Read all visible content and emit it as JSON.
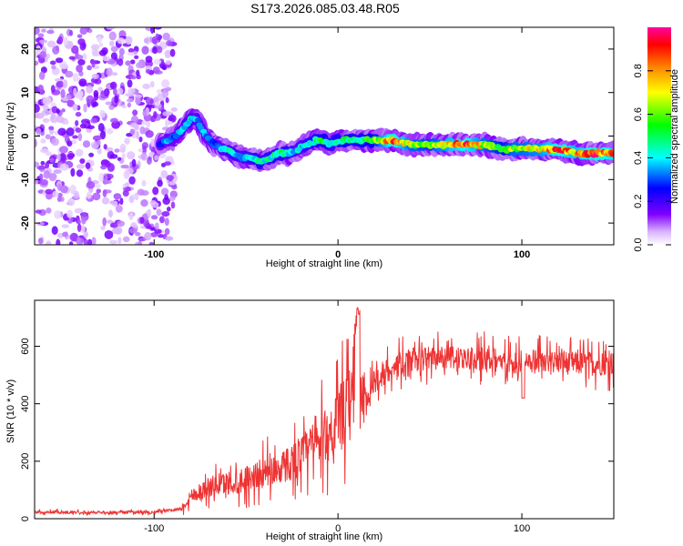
{
  "title": "S173.2026.085.03.48.R05",
  "charts": [
    {
      "type": "heatmap",
      "name": "spectrogram",
      "xlabel": "Height of straight line (km)",
      "ylabel": "Frequency (Hz)",
      "xlim": [
        -165,
        150
      ],
      "ylim": [
        -25,
        25
      ],
      "xticks": [
        -100,
        0,
        100
      ],
      "yticks": [
        -20,
        -10,
        0,
        10,
        20
      ],
      "colorbar": {
        "label": "Normalized spectral amplitude",
        "range": [
          0,
          1
        ],
        "ticks": [
          0.0,
          0.2,
          0.4,
          0.6,
          0.8
        ],
        "tick_labels": [
          "0.0",
          "0.2",
          "0.4",
          "0.6",
          "0.8"
        ],
        "colors": [
          "#ffffff",
          "#d9b3ff",
          "#8000ff",
          "#0000ff",
          "#00ffff",
          "#00ff00",
          "#ffff00",
          "#ff8000",
          "#ff0000",
          "#ff00a0"
        ]
      },
      "noise_region": {
        "x_range": [
          -165,
          -95
        ],
        "freq_range": [
          -25,
          25
        ],
        "amplitude": 0.15
      },
      "ridge": {
        "x": [
          -97,
          -93,
          -88,
          -84,
          -80,
          -77,
          -72,
          -67,
          -62,
          -57,
          -52,
          -47,
          -42,
          -37,
          -32,
          -27,
          -22,
          -17,
          -12,
          -8,
          -4,
          0,
          5,
          10,
          15,
          20,
          30,
          40,
          50,
          60,
          70,
          80,
          90,
          95,
          100,
          110,
          120,
          130,
          140,
          150
        ],
        "freq": [
          -2,
          -1,
          0,
          2,
          4,
          4,
          0,
          -2,
          -3,
          -4,
          -5,
          -5,
          -6,
          -5,
          -4,
          -4,
          -3,
          -2,
          -1,
          -1,
          -2,
          -1,
          -1,
          -1,
          -1,
          -1,
          -1,
          -2,
          -2,
          -2,
          -2,
          -2,
          -3,
          -3,
          -3,
          -3,
          -3,
          -4,
          -4,
          -4
        ],
        "amp": [
          0.3,
          0.35,
          0.35,
          0.4,
          0.45,
          0.4,
          0.35,
          0.3,
          0.4,
          0.45,
          0.4,
          0.45,
          0.5,
          0.45,
          0.5,
          0.45,
          0.4,
          0.45,
          0.5,
          0.55,
          0.45,
          0.5,
          0.55,
          0.5,
          0.55,
          0.6,
          0.95,
          0.7,
          0.65,
          0.8,
          0.9,
          0.7,
          0.6,
          0.7,
          0.7,
          0.75,
          0.9,
          0.8,
          0.95,
          0.85
        ]
      }
    },
    {
      "type": "line",
      "name": "snr",
      "xlabel": "Height of straight line (km)",
      "ylabel": "SNR (10 * v/v)",
      "xlim": [
        -165,
        150
      ],
      "ylim": [
        0,
        760
      ],
      "xticks": [
        -100,
        0,
        100
      ],
      "yticks": [
        0,
        200,
        400,
        600
      ],
      "color": "#ee3333",
      "baseline_x": [
        -165,
        -100,
        -85,
        -80,
        -70,
        -60,
        -50,
        -40,
        -30,
        -20,
        -10,
        -5,
        0,
        5,
        10,
        12,
        20,
        30,
        40,
        50,
        60,
        70,
        80,
        90,
        100,
        110,
        120,
        130,
        140,
        150
      ],
      "baseline_y": [
        22,
        22,
        35,
        80,
        110,
        125,
        140,
        160,
        180,
        220,
        270,
        300,
        340,
        380,
        430,
        350,
        480,
        530,
        550,
        560,
        560,
        555,
        555,
        550,
        545,
        545,
        545,
        540,
        540,
        540
      ]
    }
  ]
}
